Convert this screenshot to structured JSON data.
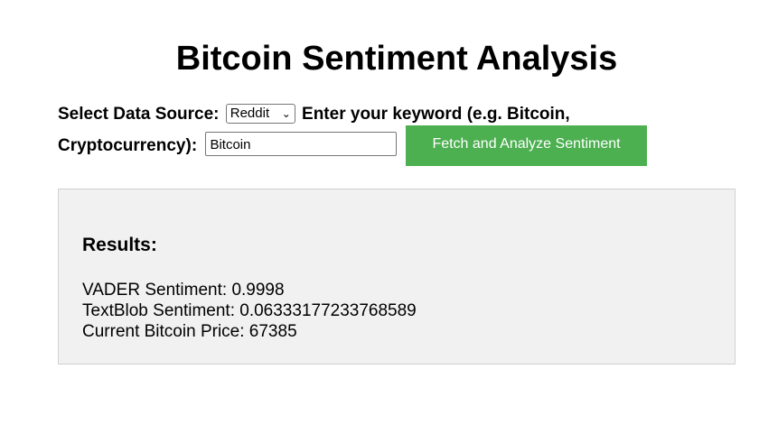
{
  "page": {
    "title": "Bitcoin Sentiment Analysis"
  },
  "form": {
    "source_label": "Select Data Source:",
    "source_selected": "Reddit",
    "keyword_label_part1": "Enter your keyword (e.g. Bitcoin,",
    "keyword_label_part2": "Cryptocurrency):",
    "keyword_value": "Bitcoin",
    "button_label": "Fetch and Analyze Sentiment"
  },
  "results": {
    "heading": "Results:",
    "vader_label": "VADER Sentiment:",
    "vader_value": "0.9998",
    "textblob_label": "TextBlob Sentiment:",
    "textblob_value": "0.06333177233768589",
    "price_label": "Current Bitcoin Price:",
    "price_value": "67385"
  },
  "colors": {
    "button_bg": "#4caf50",
    "button_text": "#ffffff",
    "results_bg": "#f1f1f1"
  }
}
